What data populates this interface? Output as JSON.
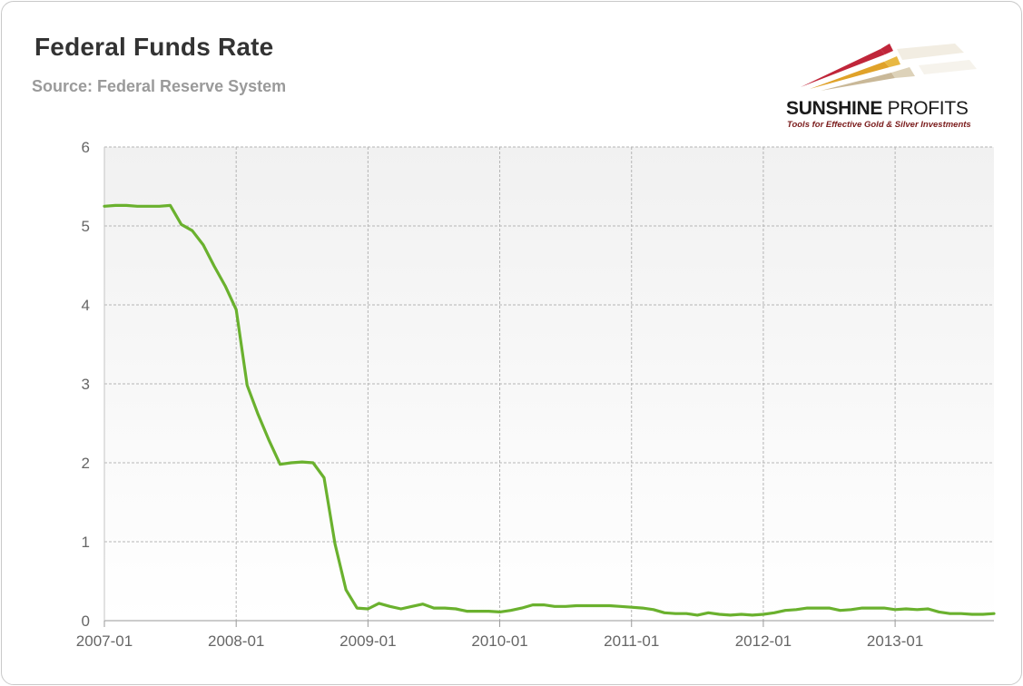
{
  "header": {
    "title": "Federal Funds Rate",
    "subtitle": "Source: Federal Reserve System"
  },
  "logo": {
    "name_bold": "SUNSHINE",
    "name_thin": "PROFITS",
    "tagline": "Tools for Effective Gold & Silver Investments"
  },
  "colors": {
    "line": "#6ab12e",
    "plot_bg_top": "#f1f1f1",
    "plot_bg_bottom": "#ffffff",
    "grid": "#b5b5b5"
  },
  "chart_data": {
    "type": "line",
    "title": "Federal Funds Rate",
    "subtitle": "Source: Federal Reserve System",
    "xlabel": "",
    "ylabel": "",
    "ylim": [
      0,
      6
    ],
    "y_ticks": [
      0,
      1,
      2,
      3,
      4,
      5,
      6
    ],
    "xlim": [
      "2007-01",
      "2013-10"
    ],
    "x_ticks": [
      "2007-01",
      "2008-01",
      "2009-01",
      "2010-01",
      "2011-01",
      "2012-01",
      "2013-01"
    ],
    "grid": true,
    "series": [
      {
        "x": [
          "2007-01",
          "2007-02",
          "2007-03",
          "2007-04",
          "2007-05",
          "2007-06",
          "2007-07",
          "2007-08",
          "2007-09",
          "2007-10",
          "2007-11",
          "2007-12",
          "2008-01",
          "2008-02",
          "2008-03",
          "2008-04",
          "2008-05",
          "2008-06",
          "2008-07",
          "2008-08",
          "2008-09",
          "2008-10",
          "2008-11",
          "2008-12",
          "2009-01",
          "2009-02",
          "2009-03",
          "2009-04",
          "2009-05",
          "2009-06",
          "2009-07",
          "2009-08",
          "2009-09",
          "2009-10",
          "2009-11",
          "2009-12",
          "2010-01",
          "2010-02",
          "2010-03",
          "2010-04",
          "2010-05",
          "2010-06",
          "2010-07",
          "2010-08",
          "2010-09",
          "2010-10",
          "2010-11",
          "2010-12",
          "2011-01",
          "2011-02",
          "2011-03",
          "2011-04",
          "2011-05",
          "2011-06",
          "2011-07",
          "2011-08",
          "2011-09",
          "2011-10",
          "2011-11",
          "2011-12",
          "2012-01",
          "2012-02",
          "2012-03",
          "2012-04",
          "2012-05",
          "2012-06",
          "2012-07",
          "2012-08",
          "2012-09",
          "2012-10",
          "2012-11",
          "2012-12",
          "2013-01",
          "2013-02",
          "2013-03",
          "2013-04",
          "2013-05",
          "2013-06",
          "2013-07",
          "2013-08",
          "2013-09",
          "2013-10"
        ],
        "values": [
          5.25,
          5.26,
          5.26,
          5.25,
          5.25,
          5.25,
          5.26,
          5.02,
          4.94,
          4.76,
          4.49,
          4.24,
          3.94,
          2.98,
          2.61,
          2.28,
          1.98,
          2.0,
          2.01,
          2.0,
          1.81,
          0.97,
          0.39,
          0.16,
          0.15,
          0.22,
          0.18,
          0.15,
          0.18,
          0.21,
          0.16,
          0.16,
          0.15,
          0.12,
          0.12,
          0.12,
          0.11,
          0.13,
          0.16,
          0.2,
          0.2,
          0.18,
          0.18,
          0.19,
          0.19,
          0.19,
          0.19,
          0.18,
          0.17,
          0.16,
          0.14,
          0.1,
          0.09,
          0.09,
          0.07,
          0.1,
          0.08,
          0.07,
          0.08,
          0.07,
          0.08,
          0.1,
          0.13,
          0.14,
          0.16,
          0.16,
          0.16,
          0.13,
          0.14,
          0.16,
          0.16,
          0.16,
          0.14,
          0.15,
          0.14,
          0.15,
          0.11,
          0.09,
          0.09,
          0.08,
          0.08,
          0.09
        ]
      }
    ]
  }
}
